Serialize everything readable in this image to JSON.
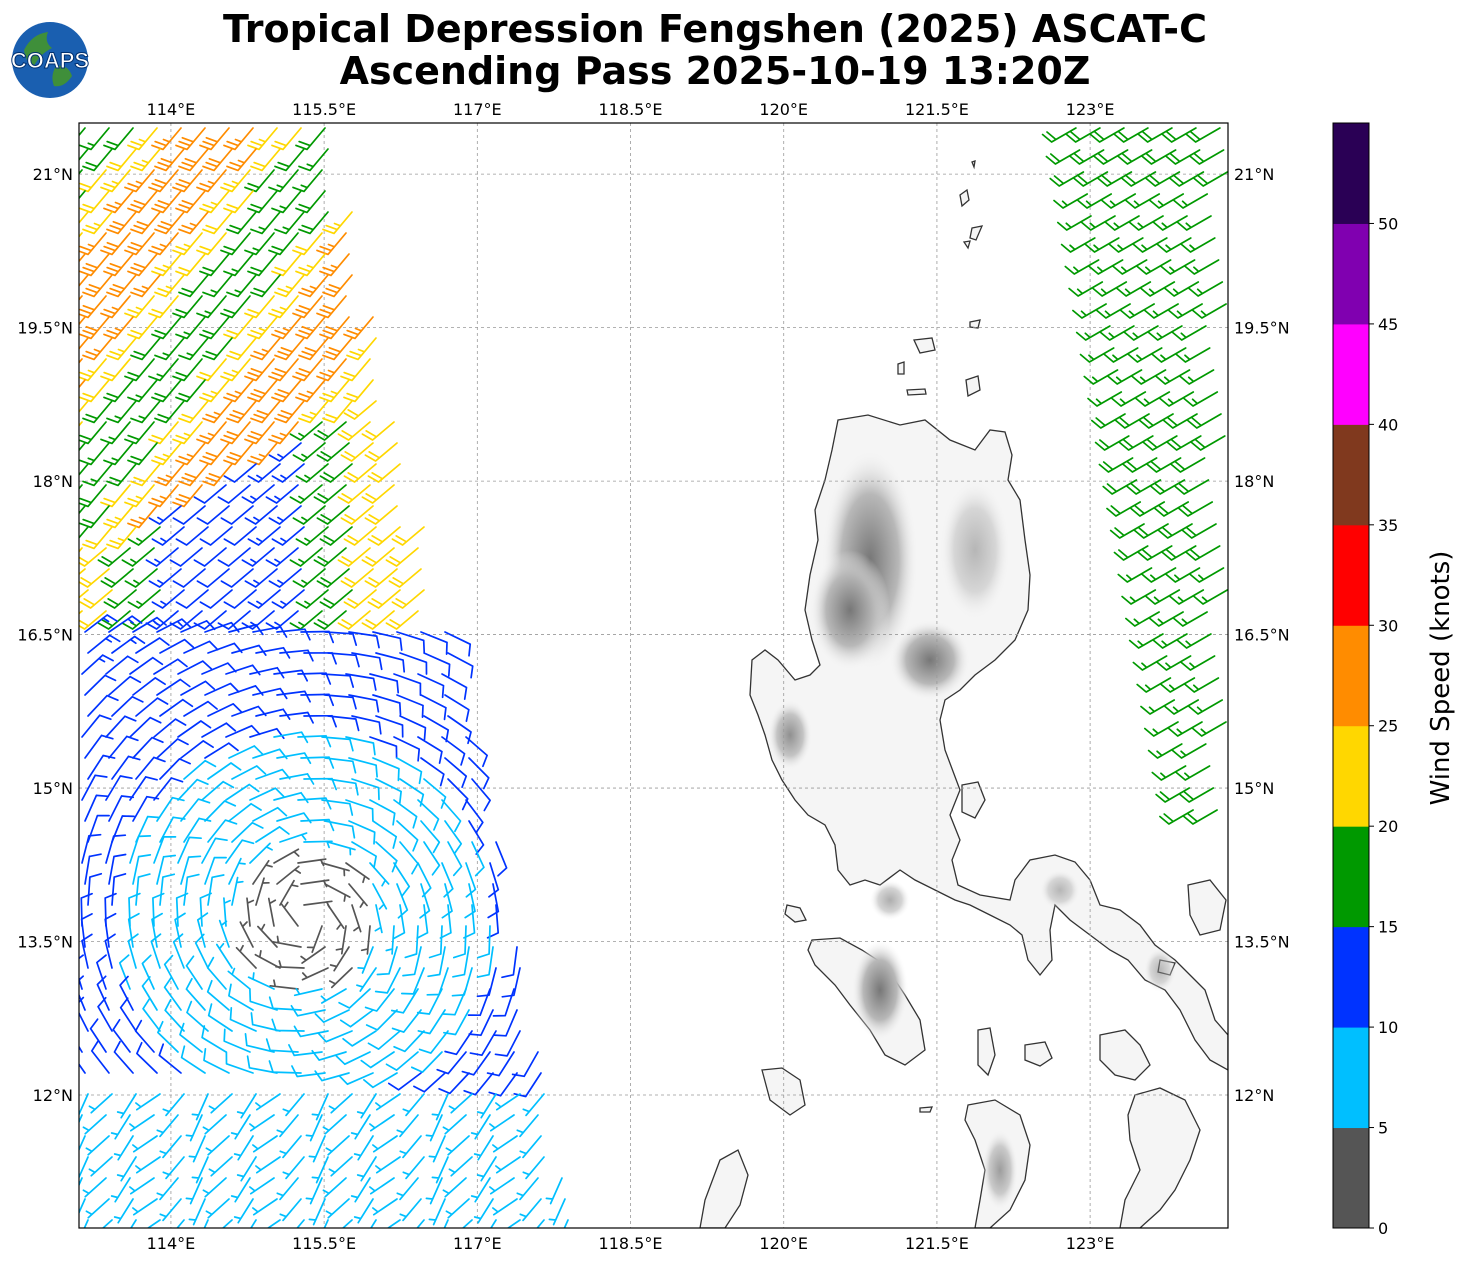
{
  "title": {
    "line1": "Tropical Depression Fengshen (2025) ASCAT-C",
    "line2": "Ascending Pass 2025-10-19 13:20Z"
  },
  "logo": {
    "text": "COAPS"
  },
  "map": {
    "lon_range": [
      113.1,
      124.35
    ],
    "lat_range": [
      10.7,
      21.5
    ],
    "lon_ticks": [
      "114°E",
      "115.5°E",
      "117°E",
      "118.5°E",
      "120°E",
      "121.5°E",
      "123°E"
    ],
    "lat_ticks": [
      "21°N",
      "19.5°N",
      "18°N",
      "16.5°N",
      "15°N",
      "13.5°N",
      "12°N"
    ],
    "gridlines": true,
    "land_fill": "#f4f4f4",
    "coast_color": "#333333"
  },
  "colorbar": {
    "title": "Wind Speed (knots)",
    "ticks": [
      "0",
      "5",
      "10",
      "15",
      "20",
      "25",
      "30",
      "35",
      "40",
      "45",
      "50"
    ],
    "colors": [
      "#555555",
      "#00bfff",
      "#0033ff",
      "#009900",
      "#ffd700",
      "#ff8c00",
      "#ff0000",
      "#80391e",
      "#ff00ff",
      "#8000b0",
      "#2a0055"
    ]
  }
}
